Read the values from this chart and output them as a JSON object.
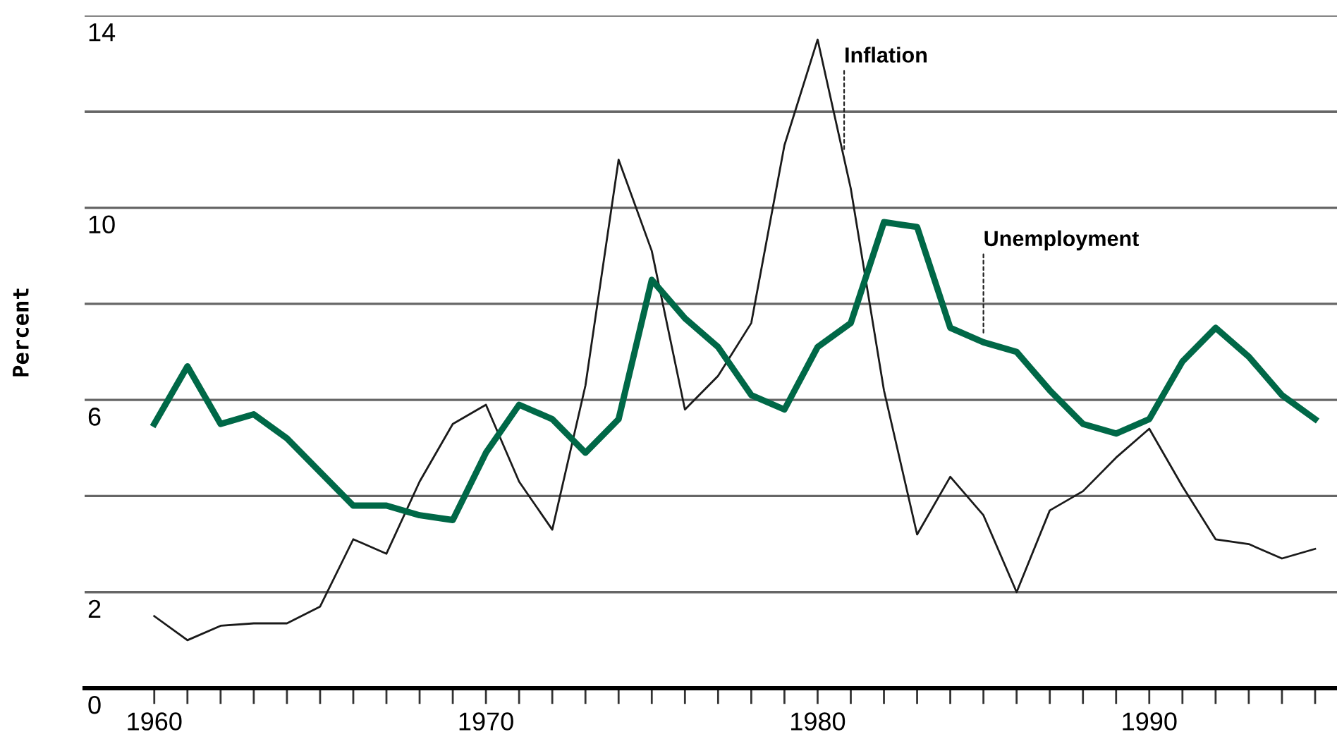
{
  "chart_data": {
    "type": "line",
    "ylabel": "Percent",
    "x": [
      1960,
      1961,
      1962,
      1963,
      1964,
      1965,
      1966,
      1967,
      1968,
      1969,
      1970,
      1971,
      1972,
      1973,
      1974,
      1975,
      1976,
      1977,
      1978,
      1979,
      1980,
      1981,
      1982,
      1983,
      1984,
      1985,
      1986,
      1987,
      1988,
      1989,
      1990,
      1991,
      1992,
      1993,
      1994,
      1995
    ],
    "series": [
      {
        "name": "Inflation",
        "color": "#1a1a1a",
        "values": [
          1.5,
          1.0,
          1.3,
          1.35,
          1.35,
          1.7,
          3.1,
          2.8,
          4.3,
          5.5,
          5.9,
          4.3,
          3.3,
          6.3,
          11.0,
          9.1,
          5.8,
          6.5,
          7.6,
          11.3,
          13.5,
          10.4,
          6.2,
          3.2,
          4.4,
          3.6,
          2.0,
          3.7,
          4.1,
          4.8,
          5.4,
          4.2,
          3.1,
          3.0,
          2.7,
          2.9
        ]
      },
      {
        "name": "Unemployment",
        "color": "#006847",
        "values": [
          5.5,
          6.7,
          5.5,
          5.7,
          5.2,
          4.5,
          3.8,
          3.8,
          3.6,
          3.5,
          4.9,
          5.9,
          5.6,
          4.9,
          5.6,
          8.5,
          7.7,
          7.1,
          6.1,
          5.8,
          7.1,
          7.6,
          9.7,
          9.6,
          7.5,
          7.2,
          7.0,
          6.2,
          5.5,
          5.3,
          5.6,
          6.8,
          7.5,
          6.9,
          6.1,
          5.6
        ]
      }
    ],
    "xlim": [
      1957.9,
      1995.66
    ],
    "ylim": [
      0,
      14
    ],
    "xticks": [
      1960,
      {
        "value": 1961,
        "label": null
      },
      {
        "value": 1962,
        "label": null
      },
      {
        "value": 1963,
        "label": null
      },
      {
        "value": 1964,
        "label": null
      },
      {
        "value": 1965,
        "label": null
      },
      {
        "value": 1966,
        "label": null
      },
      {
        "value": 1967,
        "label": null
      },
      {
        "value": 1968,
        "label": null
      },
      {
        "value": 1969,
        "label": null
      },
      1970,
      {
        "value": 1971,
        "label": null
      },
      {
        "value": 1972,
        "label": null
      },
      {
        "value": 1973,
        "label": null
      },
      {
        "value": 1974,
        "label": null
      },
      {
        "value": 1975,
        "label": null
      },
      {
        "value": 1976,
        "label": null
      },
      {
        "value": 1977,
        "label": null
      },
      {
        "value": 1978,
        "label": null
      },
      {
        "value": 1979,
        "label": null
      },
      1980,
      {
        "value": 1981,
        "label": null
      },
      {
        "value": 1982,
        "label": null
      },
      {
        "value": 1983,
        "label": null
      },
      {
        "value": 1984,
        "label": null
      },
      {
        "value": 1985,
        "label": null
      },
      {
        "value": 1986,
        "label": null
      },
      {
        "value": 1987,
        "label": null
      },
      {
        "value": 1988,
        "label": null
      },
      {
        "value": 1989,
        "label": null
      },
      1990,
      {
        "value": 1991,
        "label": null
      },
      {
        "value": 1992,
        "label": null
      },
      {
        "value": 1993,
        "label": null
      },
      {
        "value": 1994,
        "label": null
      },
      {
        "value": 1995,
        "label": null
      }
    ],
    "yticks": [
      0,
      2,
      {
        "value": 4,
        "label": null
      },
      6,
      {
        "value": 8,
        "label": null
      },
      10,
      {
        "value": 12,
        "label": null
      },
      14
    ],
    "grid": "y",
    "legend": false,
    "marker": "none",
    "line_style": "solid"
  }
}
